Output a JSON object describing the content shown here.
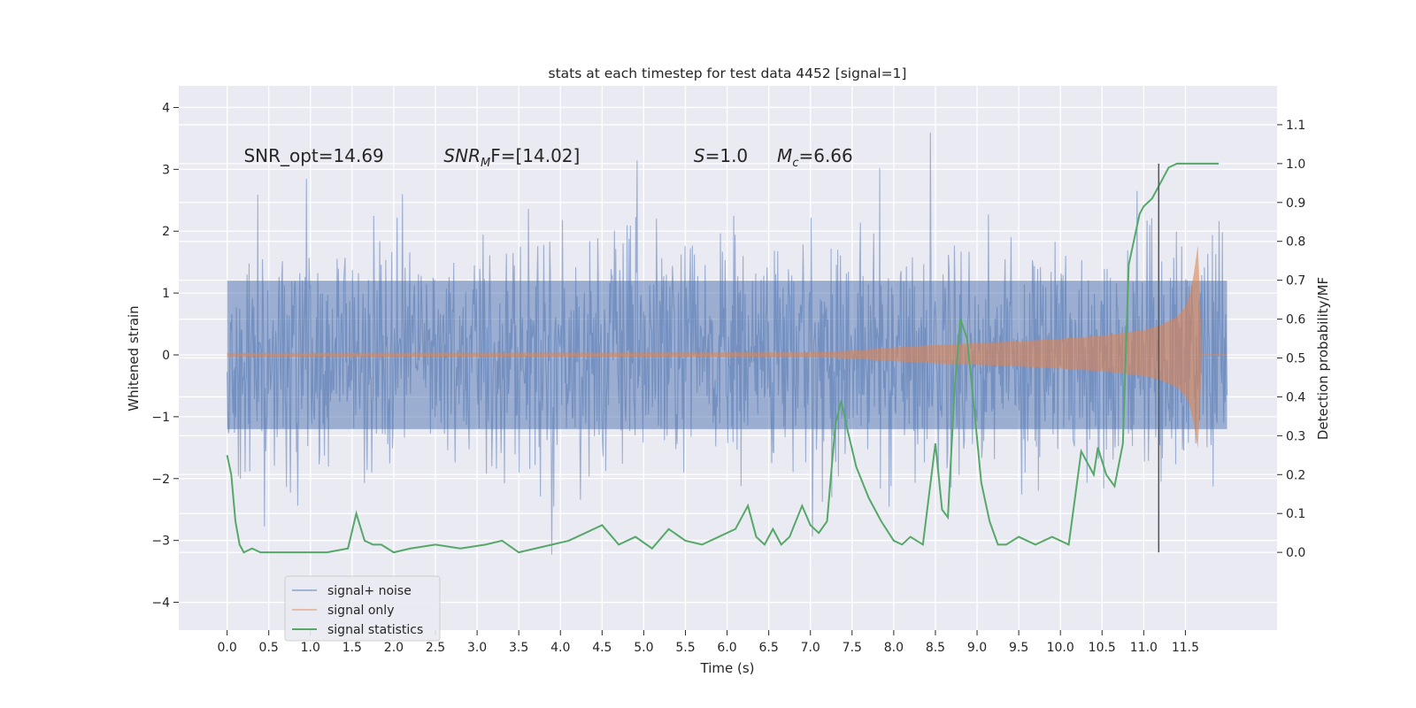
{
  "chart_data": {
    "type": "line",
    "title": "stats at each timestep for test data 4452 [signal=1]",
    "xlabel": "Time (s)",
    "ylabel": "Whitened strain",
    "y2label": "Detection probability/MF",
    "xlim": [
      -0.58,
      12.6
    ],
    "ylim": [
      -4.45,
      4.35
    ],
    "y2lim": [
      -0.2,
      1.2
    ],
    "xticks": [
      "0.0",
      "0.5",
      "1.0",
      "1.5",
      "2.0",
      "2.5",
      "3.0",
      "3.5",
      "4.0",
      "4.5",
      "5.0",
      "5.5",
      "6.0",
      "6.5",
      "7.0",
      "7.5",
      "8.0",
      "8.5",
      "9.0",
      "9.5",
      "10.0",
      "10.5",
      "11.0",
      "11.5"
    ],
    "yticks": [
      "−4",
      "−3",
      "−2",
      "−1",
      "0",
      "1",
      "2",
      "3",
      "4"
    ],
    "y2ticks": [
      "0.0",
      "0.1",
      "0.2",
      "0.3",
      "0.4",
      "0.5",
      "0.6",
      "0.7",
      "0.8",
      "0.9",
      "1.0",
      "1.1"
    ],
    "grid": true,
    "legend_position": "lower-left",
    "annotations": [
      {
        "text": "SNR_opt=14.69",
        "x": 0.2,
        "y": 3.12
      },
      {
        "text": "SNR",
        "sub": "M",
        "rest": "F=[14.02]",
        "x": 2.6,
        "y": 3.12
      },
      {
        "text": "S",
        "rest": "=1.0",
        "x": 5.6,
        "y": 3.12
      },
      {
        "text": "M",
        "sub": "c",
        "rest": "=6.66",
        "x": 6.6,
        "y": 3.12
      }
    ],
    "marker_line": {
      "x": 11.18,
      "y2_from": 0.0,
      "y2_to": 1.0
    },
    "series": [
      {
        "name": "signal+ noise",
        "color": "#4c72b0",
        "kind": "noise",
        "duration": 12.0,
        "core_amplitude": 1.2,
        "typical_peak": 2.1,
        "max_excursion": 4.0
      },
      {
        "name": "signal only",
        "color": "#dd8452",
        "kind": "chirp",
        "x": [
          0.0,
          7.0,
          7.5,
          8.0,
          8.5,
          9.0,
          9.5,
          10.0,
          10.5,
          11.0,
          11.2,
          11.4,
          11.5,
          11.55,
          11.6,
          11.65,
          11.7
        ],
        "envelope": [
          0.03,
          0.04,
          0.07,
          0.12,
          0.16,
          0.19,
          0.22,
          0.26,
          0.31,
          0.4,
          0.48,
          0.62,
          0.78,
          0.95,
          1.3,
          1.78,
          0.05
        ]
      },
      {
        "name": "signal statistics",
        "color": "#55a868",
        "kind": "line",
        "axis": "y2",
        "x": [
          0.0,
          0.05,
          0.1,
          0.15,
          0.2,
          0.3,
          0.4,
          0.5,
          0.6,
          0.8,
          1.0,
          1.2,
          1.45,
          1.55,
          1.65,
          1.75,
          1.85,
          2.0,
          2.2,
          2.5,
          2.8,
          3.1,
          3.3,
          3.5,
          3.7,
          3.9,
          4.1,
          4.3,
          4.5,
          4.7,
          4.9,
          5.1,
          5.3,
          5.5,
          5.7,
          5.9,
          6.1,
          6.25,
          6.35,
          6.45,
          6.55,
          6.65,
          6.75,
          6.9,
          7.0,
          7.1,
          7.2,
          7.3,
          7.37,
          7.45,
          7.55,
          7.7,
          7.85,
          8.0,
          8.1,
          8.2,
          8.35,
          8.5,
          8.58,
          8.65,
          8.73,
          8.8,
          8.88,
          8.97,
          9.05,
          9.15,
          9.25,
          9.35,
          9.5,
          9.7,
          9.9,
          10.1,
          10.25,
          10.35,
          10.4,
          10.45,
          10.55,
          10.65,
          10.75,
          10.82,
          10.9,
          10.95,
          11.0,
          11.1,
          11.2,
          11.3,
          11.4,
          11.5,
          11.6,
          11.7,
          11.9
        ],
        "y": [
          0.25,
          0.2,
          0.08,
          0.02,
          0.0,
          0.01,
          0.0,
          0.0,
          0.0,
          0.0,
          0.0,
          0.0,
          0.01,
          0.1,
          0.03,
          0.02,
          0.02,
          0.0,
          0.01,
          0.02,
          0.01,
          0.02,
          0.03,
          0.0,
          0.01,
          0.02,
          0.03,
          0.05,
          0.07,
          0.02,
          0.04,
          0.01,
          0.06,
          0.03,
          0.02,
          0.04,
          0.06,
          0.12,
          0.04,
          0.02,
          0.06,
          0.02,
          0.04,
          0.12,
          0.07,
          0.05,
          0.08,
          0.33,
          0.39,
          0.31,
          0.22,
          0.14,
          0.08,
          0.03,
          0.02,
          0.04,
          0.02,
          0.28,
          0.11,
          0.09,
          0.42,
          0.6,
          0.55,
          0.36,
          0.18,
          0.08,
          0.02,
          0.02,
          0.04,
          0.02,
          0.04,
          0.02,
          0.26,
          0.22,
          0.2,
          0.27,
          0.2,
          0.17,
          0.28,
          0.74,
          0.82,
          0.87,
          0.89,
          0.91,
          0.95,
          0.99,
          1.0,
          1.0,
          1.0,
          1.0,
          1.0
        ]
      }
    ]
  }
}
